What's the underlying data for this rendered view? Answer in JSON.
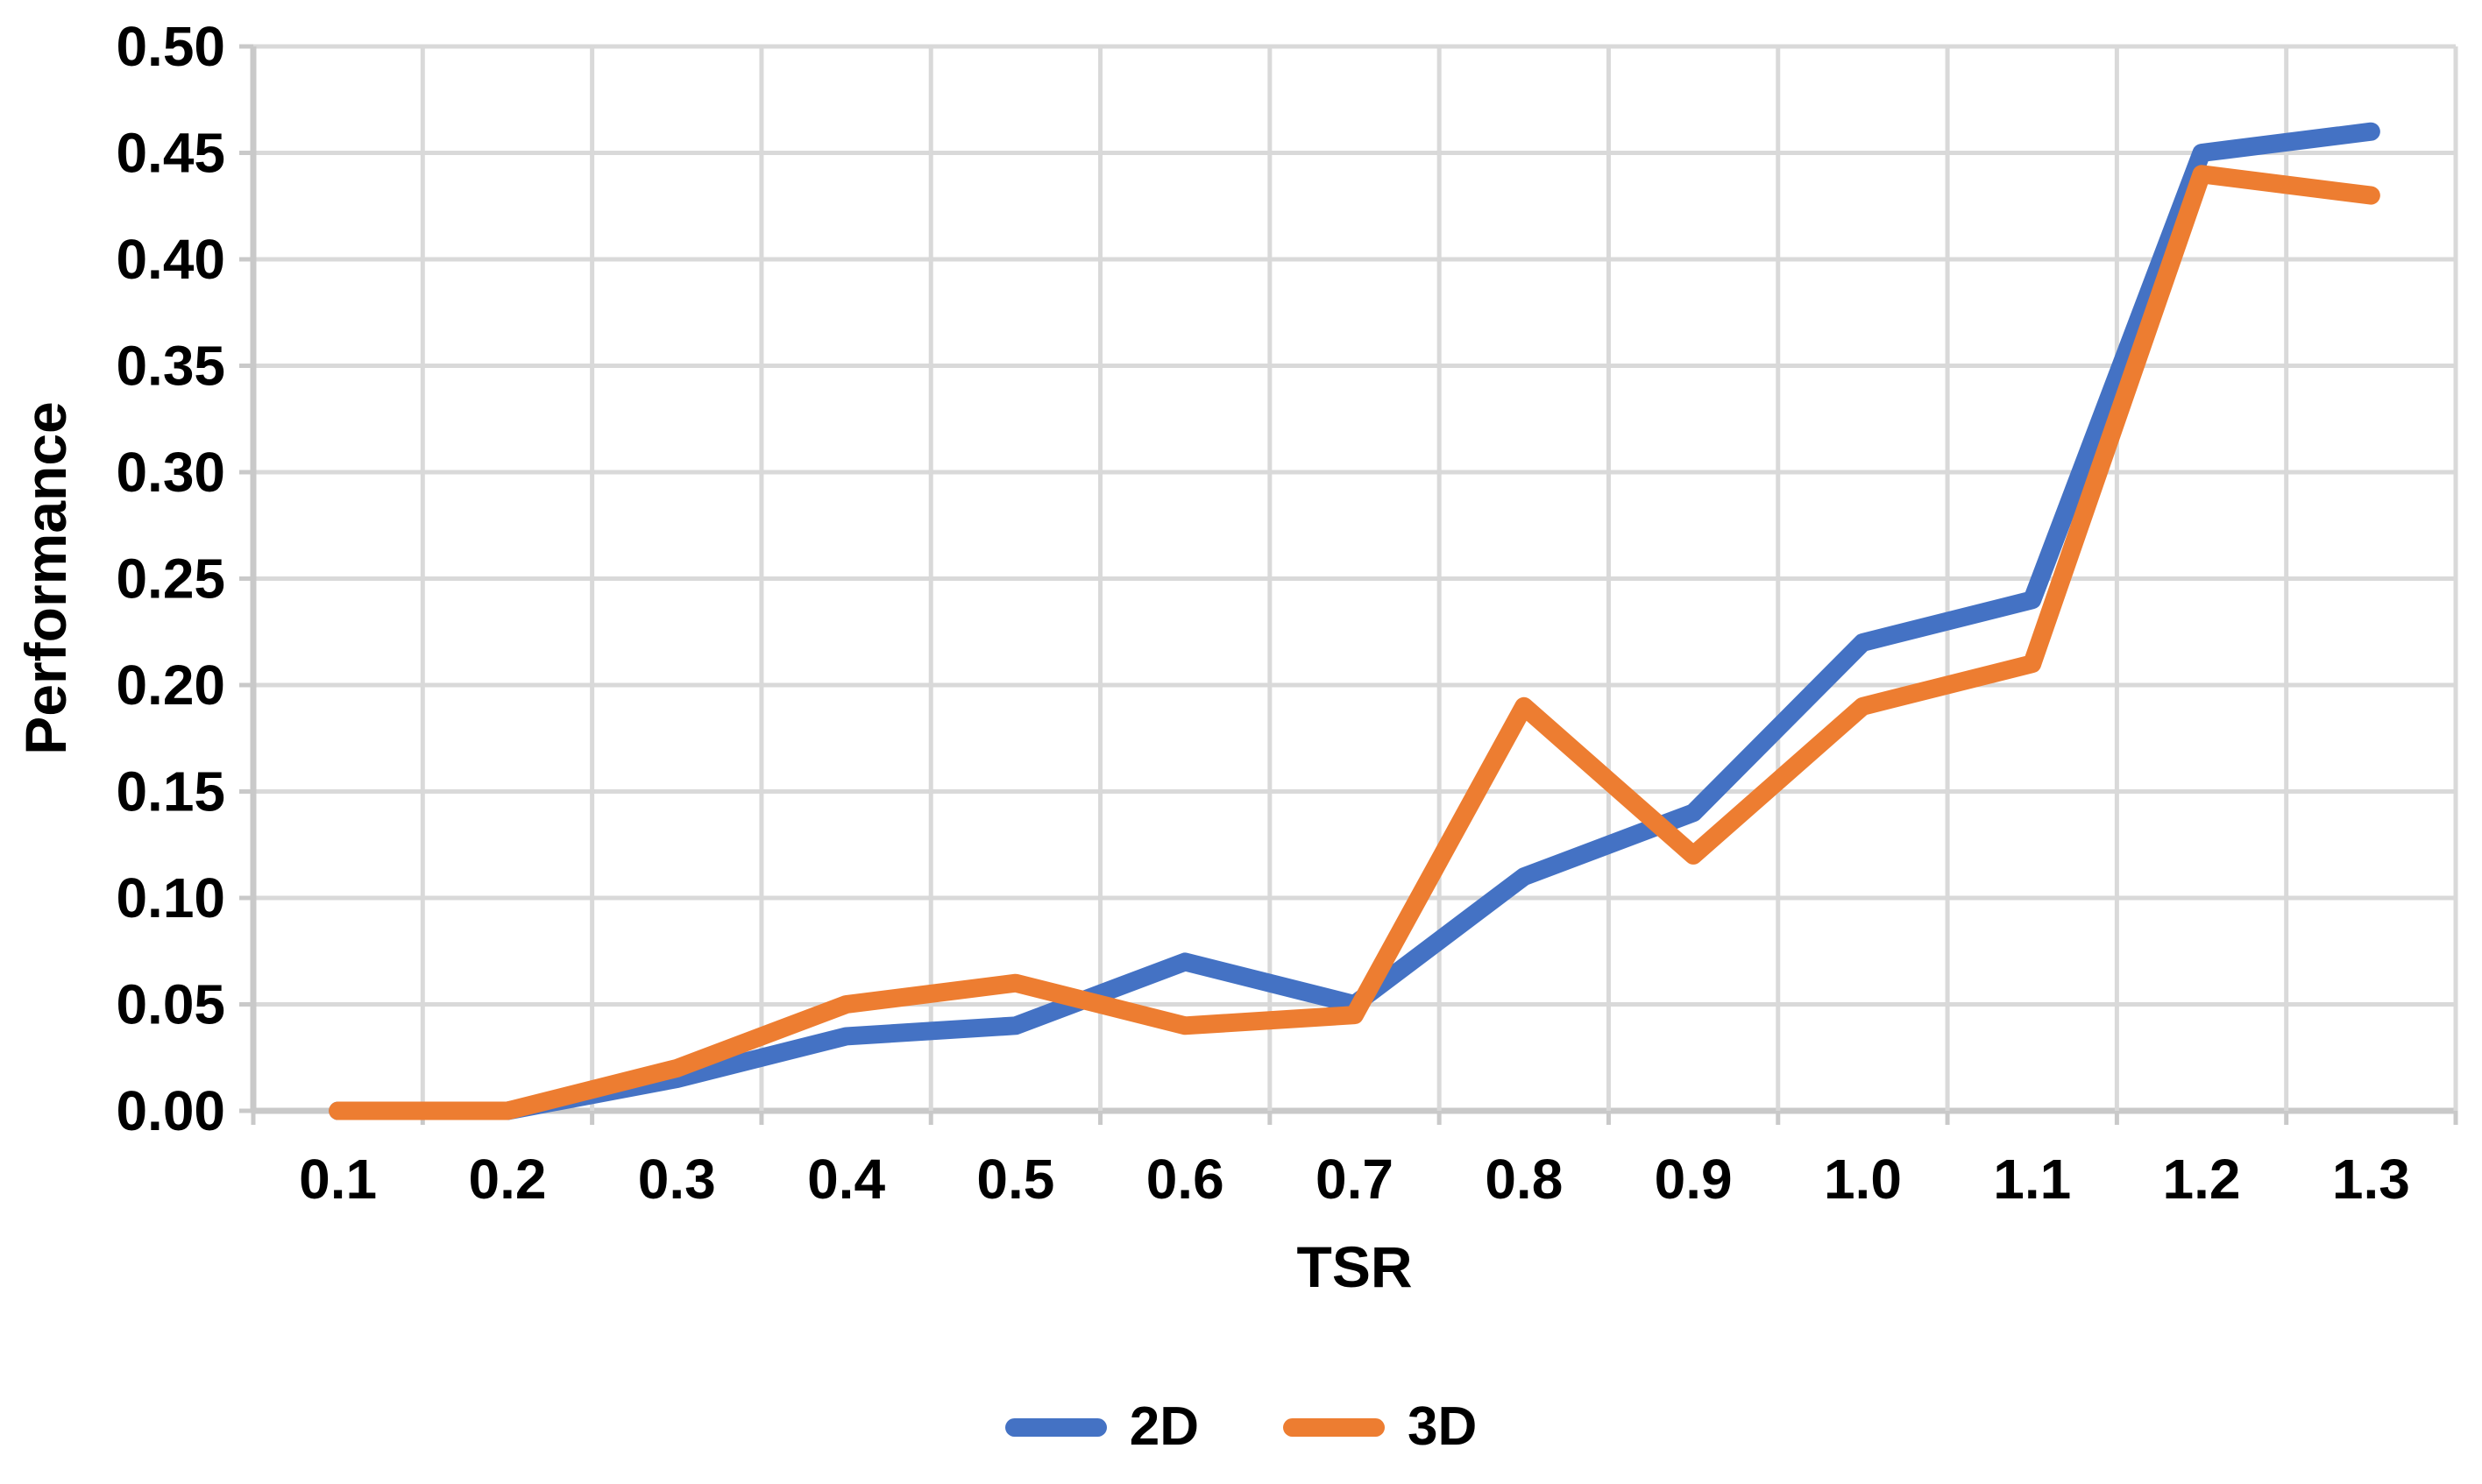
{
  "chart_data": {
    "type": "line",
    "title": "",
    "xlabel": "TSR",
    "ylabel": "Performance",
    "categories": [
      "0.1",
      "0.2",
      "0.3",
      "0.4",
      "0.5",
      "0.6",
      "0.7",
      "0.8",
      "0.9",
      "1.0",
      "1.1",
      "1.2",
      "1.3"
    ],
    "series": [
      {
        "name": "2D",
        "color": "#4472C4",
        "values": [
          0.0,
          0.0,
          0.015,
          0.035,
          0.04,
          0.07,
          0.05,
          0.11,
          0.14,
          0.22,
          0.24,
          0.45,
          0.46
        ]
      },
      {
        "name": "3D",
        "color": "#ED7D31",
        "values": [
          0.0,
          0.0,
          0.02,
          0.05,
          0.06,
          0.04,
          0.045,
          0.19,
          0.12,
          0.19,
          0.21,
          0.44,
          0.43
        ]
      }
    ],
    "y_ticks": [
      "0.00",
      "0.05",
      "0.10",
      "0.15",
      "0.20",
      "0.25",
      "0.30",
      "0.35",
      "0.40",
      "0.45",
      "0.50"
    ],
    "ylim": [
      0,
      0.5
    ],
    "grid": true,
    "legend_position": "bottom-center"
  },
  "colors": {
    "gridline": "#D9D9D9",
    "axis_line": "#C9C9C9",
    "text": "#000000",
    "background": "#FFFFFF"
  }
}
